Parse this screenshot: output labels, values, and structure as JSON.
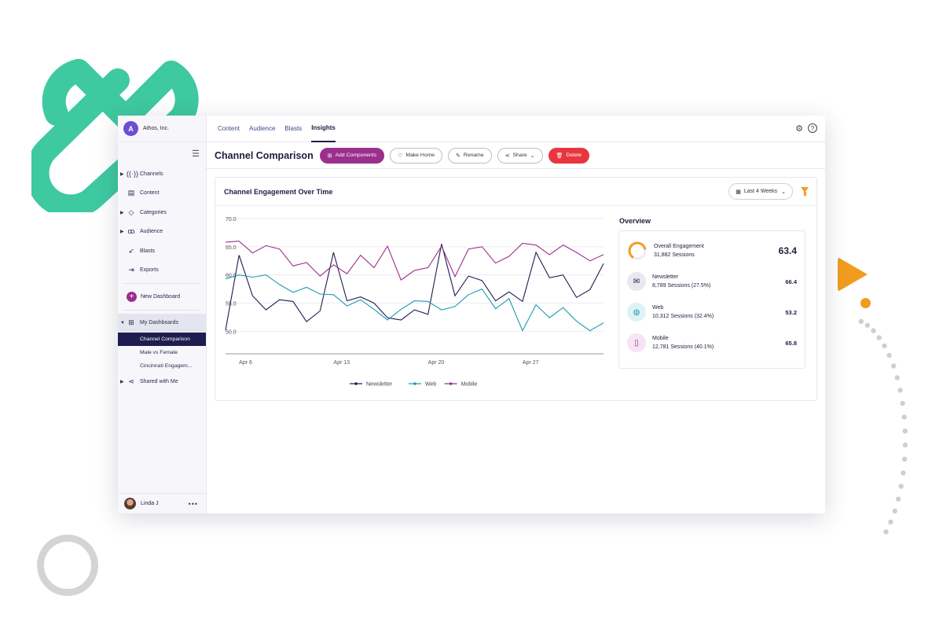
{
  "app": {
    "org_name": "Athos, Inc.",
    "org_logo_letter": "A"
  },
  "sidebar": {
    "items": [
      {
        "label": "Channels",
        "icon": "broadcast-icon"
      },
      {
        "label": "Content",
        "icon": "document-icon"
      },
      {
        "label": "Categories",
        "icon": "tag-icon"
      },
      {
        "label": "Audience",
        "icon": "people-icon"
      },
      {
        "label": "Blasts",
        "icon": "rocket-icon"
      },
      {
        "label": "Exports",
        "icon": "export-icon"
      }
    ],
    "new_dashboard": "New Dashboard",
    "my_dashboards": "My Dashboards",
    "dashboards": [
      "Channel Comparison",
      "Male vs Female",
      "Cincinnati Engagem..."
    ],
    "shared": "Shared with Me",
    "user_name": "Linda J"
  },
  "topnav": {
    "tabs": [
      "Content",
      "Audience",
      "Blasts",
      "Insights"
    ],
    "active_tab": "Insights"
  },
  "toolbar": {
    "page_title": "Channel Comparison",
    "add_components": "Add Components",
    "make_home": "Make Home",
    "rename": "Rename",
    "share": "Share",
    "delete": "Delete"
  },
  "card": {
    "title": "Channel Engagement Over Time",
    "date_range": "Last 4 Weeks"
  },
  "overview": {
    "title": "Overview",
    "overall": {
      "label": "Overall Engagement",
      "sessions": "31,882 Sessions",
      "value": "63.4"
    },
    "channels": [
      {
        "label": "Newsletter",
        "sessions": "8,789 Sessions (27.5%)",
        "value": "66.4",
        "color": "#1f1c4f",
        "bg": "#e8e8f0"
      },
      {
        "label": "Web",
        "sessions": "10,312 Sessions (32.4%)",
        "value": "53.2",
        "color": "#1a9bb0",
        "bg": "#dff3f6"
      },
      {
        "label": "Mobile",
        "sessions": "12,781 Sessions (40.1%)",
        "value": "65.8",
        "color": "#9b2f8e",
        "bg": "#f6e3f3"
      }
    ]
  },
  "chart_data": {
    "type": "line",
    "yticks": [
      "70.0",
      "65.0",
      "60.0",
      "55.0",
      "50.0"
    ],
    "ylim": [
      46,
      70
    ],
    "xticks": [
      {
        "label": "Apr 6",
        "index": 1
      },
      {
        "label": "Apr 13",
        "index": 8
      },
      {
        "label": "Apr 20",
        "index": 15
      },
      {
        "label": "Apr 27",
        "index": 22
      }
    ],
    "grid": true,
    "legend": "bottom",
    "series": [
      {
        "name": "Newsletter",
        "color": "#1f1c4f",
        "values": [
          50.2,
          63.5,
          56.3,
          53.8,
          55.6,
          55.3,
          51.7,
          53.6,
          64.0,
          55.4,
          56.1,
          55.0,
          52.4,
          52.0,
          53.8,
          53.0,
          65.5,
          56.3,
          59.8,
          59.0,
          55.4,
          57.0,
          55.3,
          64.0,
          59.5,
          60.0,
          56.0,
          57.4,
          62.0
        ]
      },
      {
        "name": "Web",
        "color": "#1a9bb0",
        "values": [
          59.3,
          60.0,
          59.6,
          60.0,
          58.3,
          56.9,
          57.8,
          56.6,
          56.5,
          54.5,
          55.6,
          53.9,
          52.0,
          53.9,
          55.4,
          55.3,
          53.8,
          54.4,
          56.5,
          57.5,
          54.0,
          55.8,
          50.1,
          54.7,
          52.4,
          54.2,
          51.8,
          50.1,
          51.5
        ]
      },
      {
        "name": "Mobile",
        "color": "#9b2f8e",
        "values": [
          65.8,
          66.0,
          63.9,
          65.2,
          64.6,
          61.6,
          62.2,
          59.8,
          61.8,
          60.2,
          63.5,
          61.3,
          65.1,
          59.1,
          60.8,
          61.3,
          65.1,
          59.7,
          64.6,
          65.0,
          62.1,
          63.3,
          65.6,
          65.3,
          63.6,
          65.3,
          64.0,
          62.5,
          63.6
        ]
      }
    ]
  }
}
